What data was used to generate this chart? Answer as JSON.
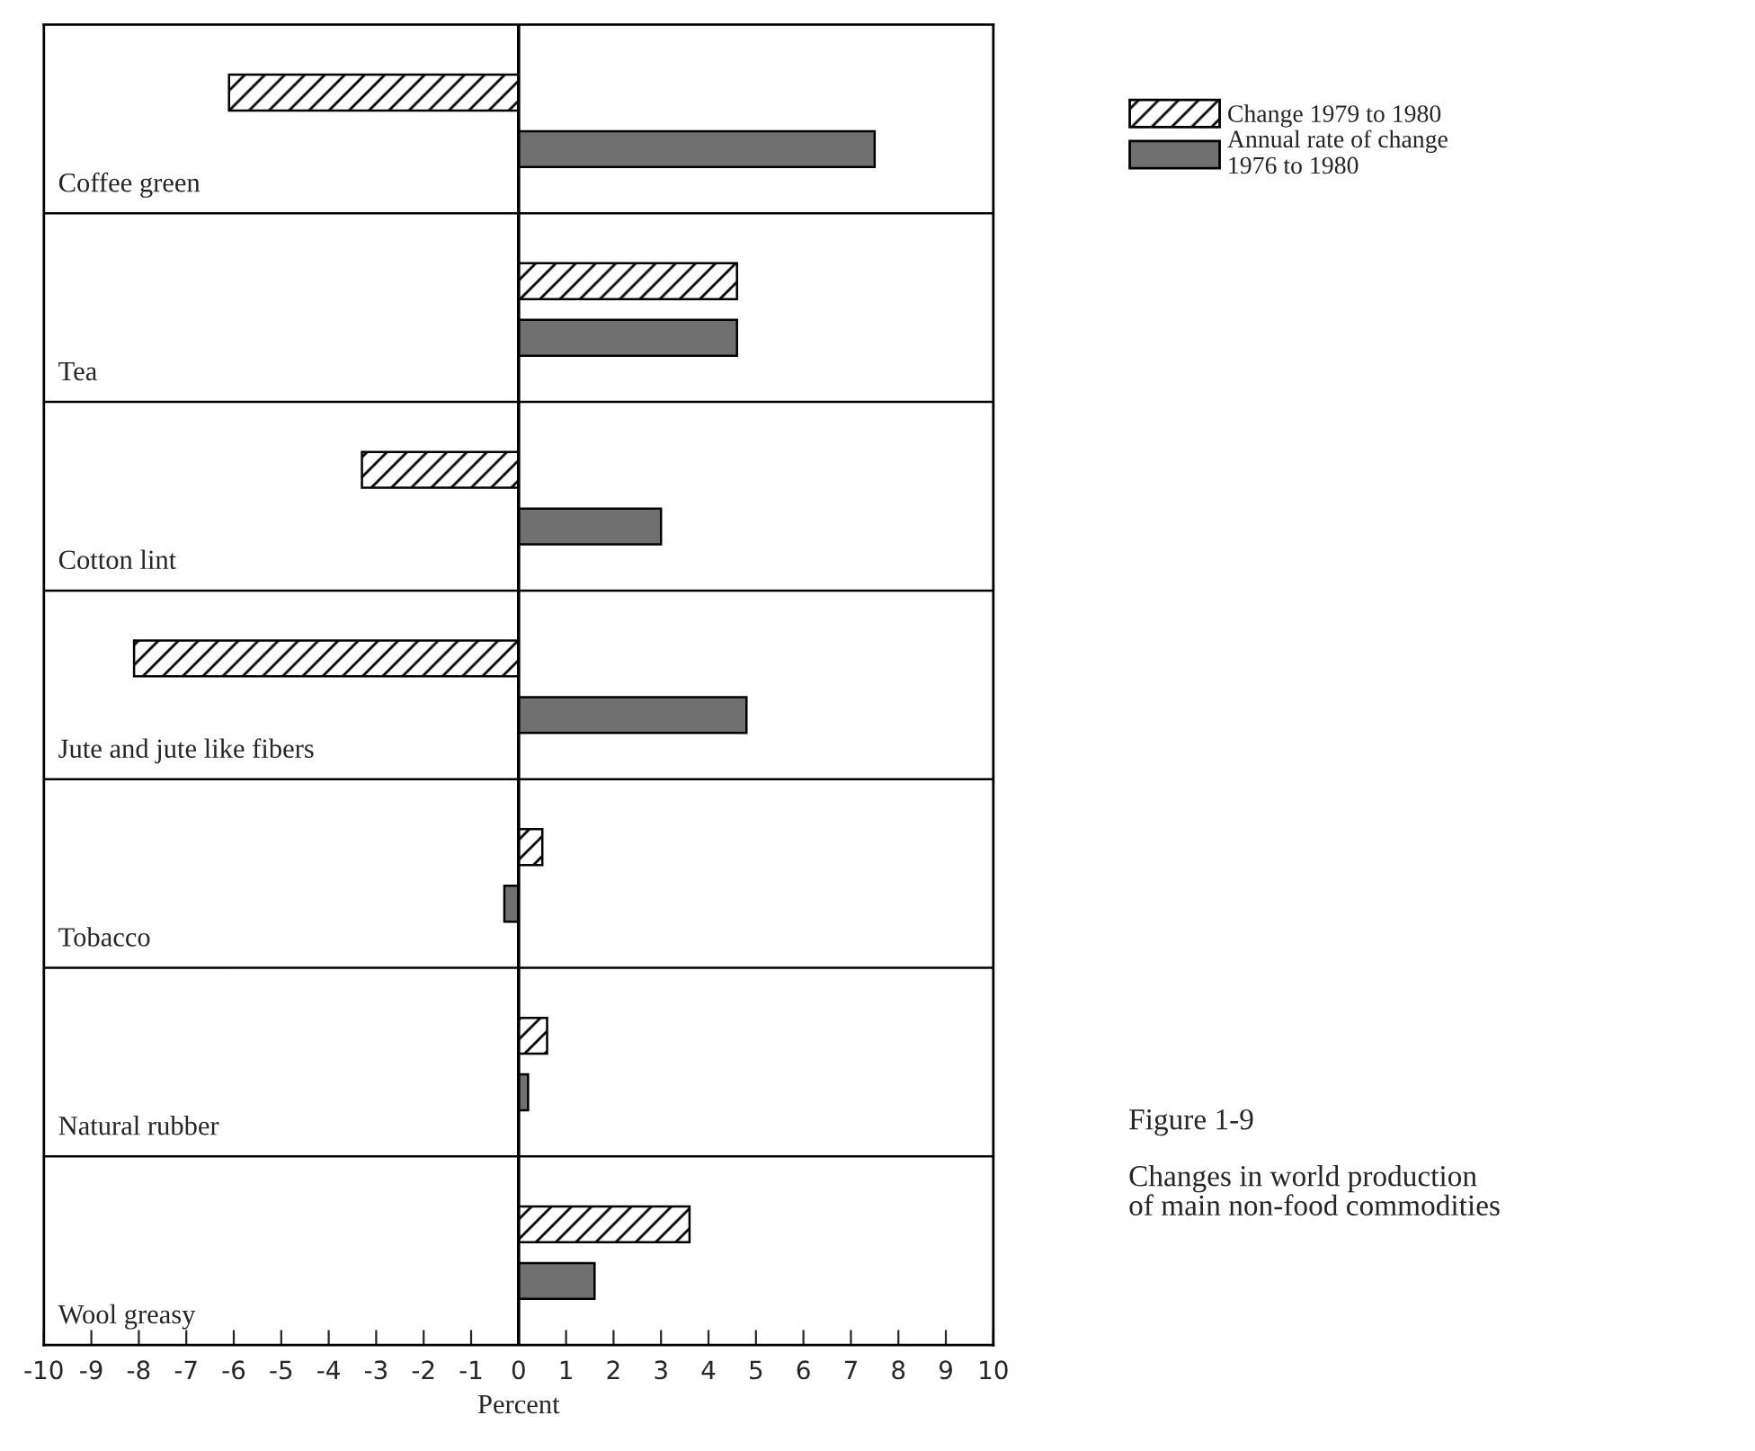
{
  "chart_data": {
    "type": "bar",
    "orientation": "horizontal",
    "title": "Figure 1-9",
    "subtitle": "Changes in world production\nof main non-food commodities",
    "xlabel": "Percent",
    "categories": [
      "Coffee green",
      "Tea",
      "Cotton lint",
      "Jute and jute like fibers",
      "Tobacco",
      "Natural rubber",
      "Wool greasy"
    ],
    "series": [
      {
        "name": "Change 1979 to 1980",
        "color": "#000000",
        "values": [
          -6.1,
          4.6,
          -3.3,
          -8.1,
          0.5,
          0.6,
          3.6
        ]
      },
      {
        "name": "Annual rate of change\n1976 to 1980",
        "color": "#707070",
        "values": [
          7.5,
          4.6,
          3.0,
          4.8,
          -0.3,
          0.2,
          1.6
        ]
      }
    ],
    "xlim": [
      -10,
      10
    ],
    "xticks": [
      -10,
      -9,
      -8,
      -7,
      -6,
      -5,
      -4,
      -3,
      -2,
      -1,
      0,
      1,
      2,
      3,
      4,
      5,
      6,
      7,
      8,
      9,
      10
    ],
    "ref_lines": [
      {
        "axis": "x",
        "value": 0,
        "color": "#000000"
      }
    ],
    "grid": false,
    "legend": "right"
  }
}
